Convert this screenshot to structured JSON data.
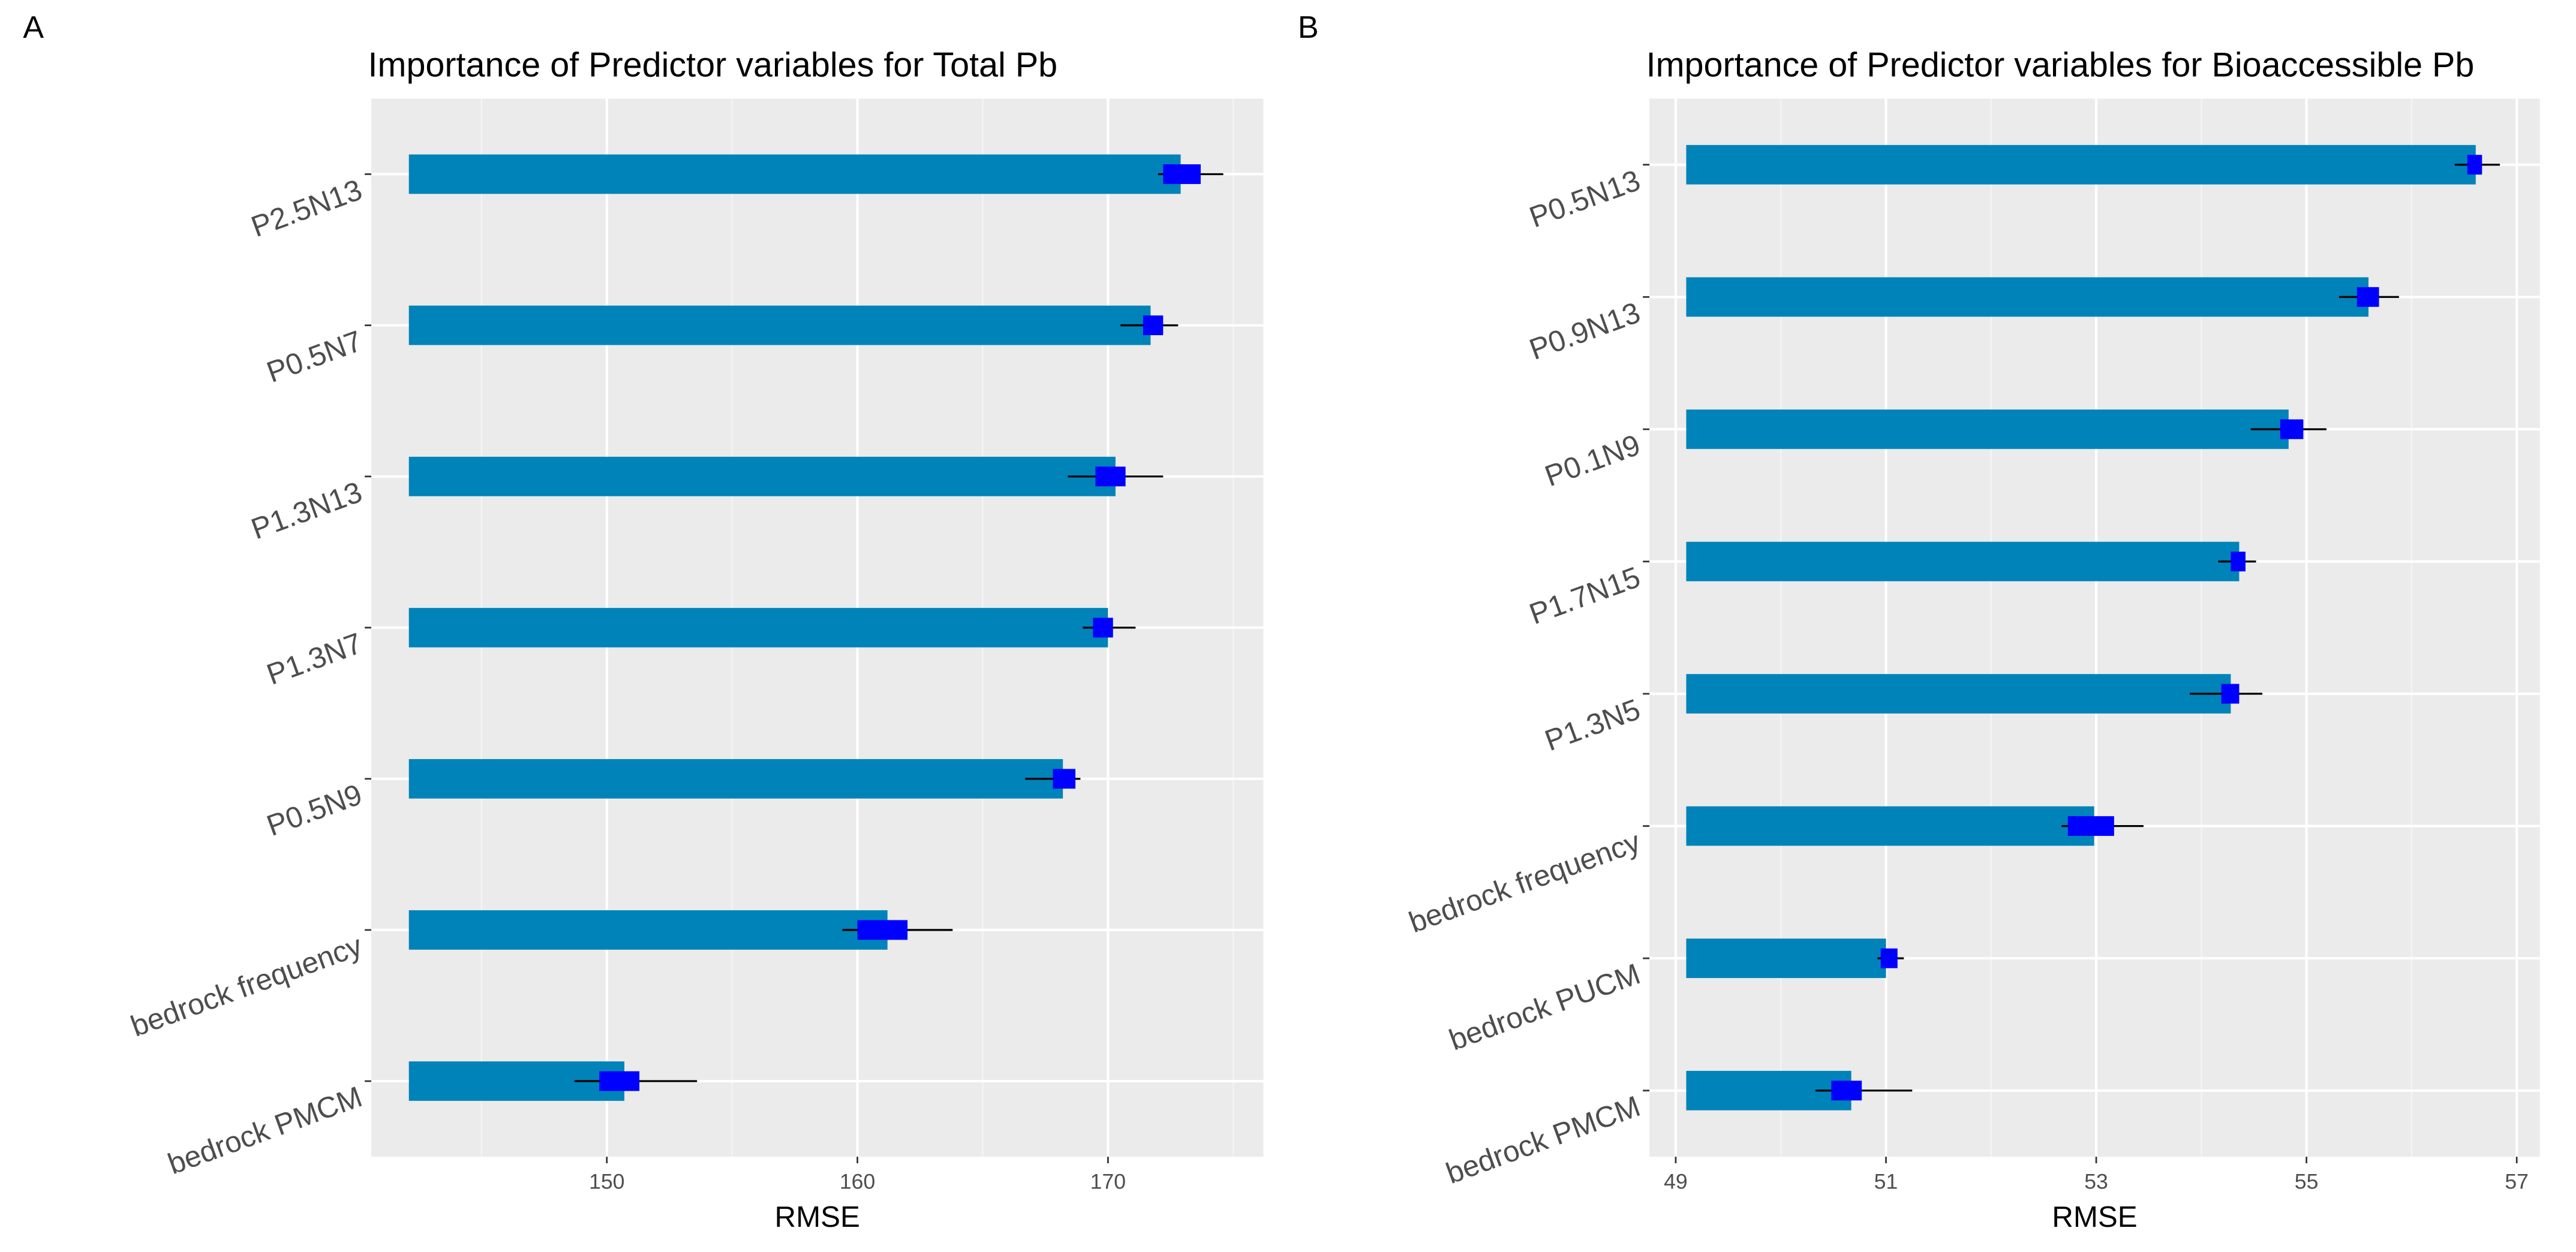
{
  "chart_data": [
    {
      "type": "bar",
      "panel_label": "A",
      "title": "Importance of Predictor variables for Total Pb",
      "x_label": "RMSE",
      "orientation": "horizontal",
      "color": "#0083b8",
      "box_color": "#0000ff",
      "whisker_color": "#000000",
      "grid": true,
      "categories": [
        "P2.5N13",
        "P0.5N7",
        "P1.3N13",
        "P1.3N7",
        "P0.5N9",
        "bedrock frequency",
        "bedrock PMCM"
      ],
      "bar_base": 142.1,
      "values": [
        172.9,
        171.7,
        170.3,
        170.0,
        168.2,
        161.2,
        150.7
      ],
      "box_low": [
        172.2,
        171.4,
        169.5,
        169.4,
        167.8,
        160.0,
        149.7
      ],
      "box_high": [
        173.7,
        172.2,
        170.7,
        170.2,
        168.7,
        162.0,
        151.3
      ],
      "whisker_low": [
        172.0,
        170.5,
        168.4,
        169.0,
        166.7,
        159.4,
        148.7
      ],
      "whisker_high": [
        174.6,
        172.8,
        172.2,
        171.1,
        168.9,
        163.8,
        153.6
      ],
      "xlim": [
        140.6,
        176.2
      ],
      "xticks": [
        150,
        160,
        170
      ],
      "minor_xticks": [
        145,
        155,
        165,
        175
      ]
    },
    {
      "type": "bar",
      "panel_label": "B",
      "title": "Importance of Predictor variables for Bioaccessible Pb",
      "x_label": "RMSE",
      "orientation": "horizontal",
      "color": "#0083b8",
      "box_color": "#0000ff",
      "whisker_color": "#000000",
      "grid": true,
      "categories": [
        "P0.5N13",
        "P0.9N13",
        "P0.1N9",
        "P1.7N15",
        "P1.3N5",
        "bedrock frequency",
        "bedrock PUCM",
        "bedrock PMCM"
      ],
      "bar_base": 49.1,
      "values": [
        56.61,
        55.59,
        54.83,
        54.36,
        54.28,
        52.98,
        51.0,
        50.67
      ],
      "box_low": [
        56.53,
        55.48,
        54.75,
        54.28,
        54.19,
        52.73,
        50.95,
        50.48
      ],
      "box_high": [
        56.67,
        55.69,
        54.97,
        54.42,
        54.36,
        53.17,
        51.11,
        50.77
      ],
      "whisker_low": [
        56.41,
        55.31,
        54.47,
        54.16,
        53.89,
        52.67,
        50.92,
        50.33
      ],
      "whisker_high": [
        56.84,
        55.88,
        55.19,
        54.52,
        54.58,
        53.45,
        51.17,
        51.25
      ],
      "xlim": [
        48.75,
        57.22
      ],
      "xticks": [
        49,
        51,
        53,
        55,
        57
      ],
      "minor_xticks": [
        50,
        52,
        54,
        56
      ]
    }
  ]
}
